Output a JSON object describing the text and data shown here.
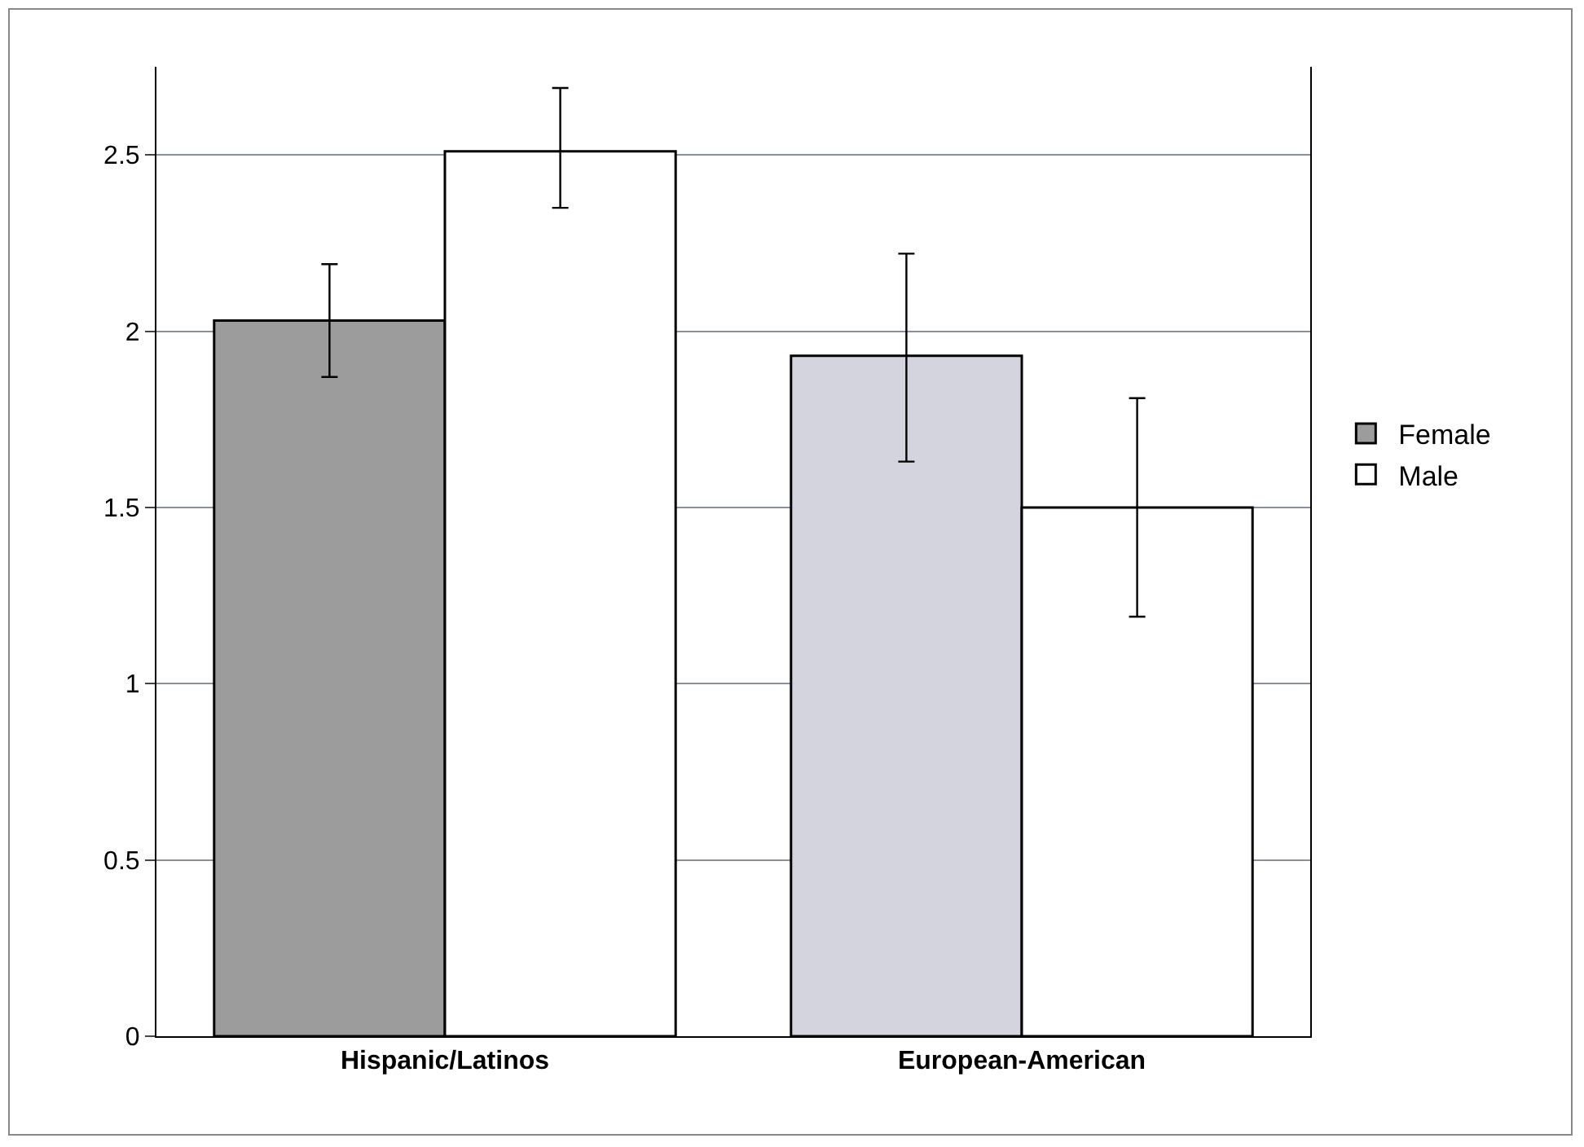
{
  "chart_data": {
    "type": "bar",
    "categories": [
      "Hispanic/Latinos",
      "European-American"
    ],
    "series": [
      {
        "name": "Female",
        "colors": [
          "#9c9c9c",
          "#d4d4de"
        ],
        "values": [
          2.03,
          1.93
        ],
        "errors": [
          [
            1.87,
            2.19
          ],
          [
            1.63,
            2.22
          ]
        ]
      },
      {
        "name": "Male",
        "color": "#ffffff",
        "values": [
          2.51,
          1.5
        ],
        "errors": [
          [
            2.35,
            2.69
          ],
          [
            1.19,
            1.81
          ]
        ]
      }
    ],
    "ylim": [
      0,
      2.75
    ],
    "yticks": [
      0,
      0.5,
      1,
      1.5,
      2,
      2.5
    ],
    "grid": "y",
    "legend": "right"
  }
}
